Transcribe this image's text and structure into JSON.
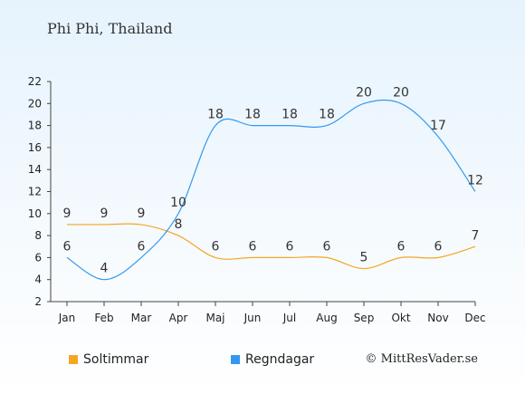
{
  "title": "Phi Phi, Thailand",
  "copyright": "© MittResVader.se",
  "chart_data": {
    "type": "line",
    "categories": [
      "Jan",
      "Feb",
      "Mar",
      "Apr",
      "Maj",
      "Jun",
      "Jul",
      "Aug",
      "Sep",
      "Okt",
      "Nov",
      "Dec"
    ],
    "series": [
      {
        "name": "Soltimmar",
        "color": "#f5a623",
        "values": [
          9,
          9,
          9,
          8,
          6,
          6,
          6,
          6,
          5,
          6,
          6,
          7
        ]
      },
      {
        "name": "Regndagar",
        "color": "#3399ee",
        "values": [
          6,
          4,
          6,
          10,
          18,
          18,
          18,
          18,
          20,
          20,
          17,
          12
        ]
      }
    ],
    "ylim": [
      2,
      22
    ],
    "yticks": [
      2,
      4,
      6,
      8,
      10,
      12,
      14,
      16,
      18,
      20,
      22
    ],
    "grid": false,
    "legend": "bottom-left"
  }
}
